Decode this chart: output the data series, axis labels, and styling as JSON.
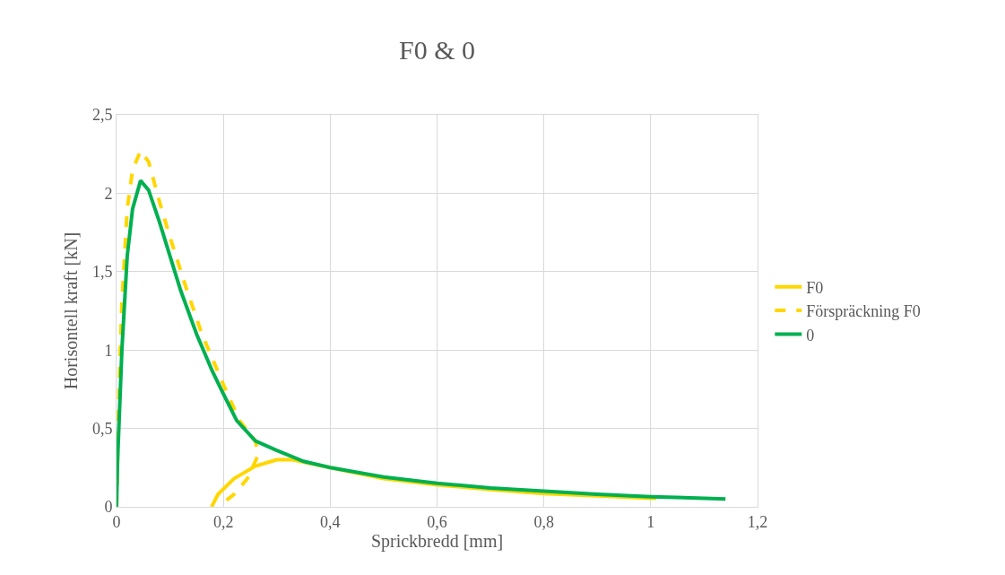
{
  "chart_data": {
    "type": "line",
    "title": "F0 & 0",
    "xlabel": "Sprickbredd [mm]",
    "ylabel": "Horisontell kraft [kN]",
    "xlim": [
      0,
      1.2
    ],
    "xticks": [
      0,
      {
        "value": 0.2,
        "label": "0,2"
      },
      {
        "value": 0.4,
        "label": "0,4"
      },
      {
        "value": 0.6,
        "label": "0,6"
      },
      {
        "value": 0.8,
        "label": "0,8"
      },
      1,
      {
        "value": 1.2,
        "label": "1,2"
      }
    ],
    "ylim": [
      0,
      2.5
    ],
    "yticks": [
      0,
      {
        "value": 0.5,
        "label": "0,5"
      },
      1,
      {
        "value": 1.5,
        "label": "1,5"
      },
      2,
      {
        "value": 2.5,
        "label": "2,5"
      }
    ],
    "grid": true,
    "legend": "right",
    "marker": "none",
    "series": [
      {
        "name": "F0",
        "color": "#ffd700",
        "line_style": "solid",
        "x": [
          0.178,
          0.19,
          0.22,
          0.26,
          0.3,
          0.33,
          0.4,
          0.5,
          0.6,
          0.7,
          0.8,
          0.9,
          1.0,
          1.01
        ],
        "values": [
          0,
          0.08,
          0.18,
          0.26,
          0.3,
          0.3,
          0.25,
          0.18,
          0.14,
          0.11,
          0.085,
          0.07,
          0.055,
          0.055
        ]
      },
      {
        "name": "Förspräckning F0",
        "color": "#ffd700",
        "line_style": "dashed",
        "x": [
          0,
          0.005,
          0.01,
          0.02,
          0.03,
          0.045,
          0.06,
          0.08,
          0.1,
          0.13,
          0.16,
          0.2,
          0.23,
          0.26,
          0.265,
          0.245,
          0.22,
          0.19
        ],
        "values": [
          0,
          0.8,
          1.3,
          1.9,
          2.15,
          2.27,
          2.2,
          1.95,
          1.72,
          1.4,
          1.1,
          0.78,
          0.55,
          0.42,
          0.33,
          0.18,
          0.08,
          0
        ]
      },
      {
        "name": "0",
        "color": "#00b050",
        "line_style": "solid",
        "x": [
          0,
          0.002,
          0.01,
          0.02,
          0.03,
          0.045,
          0.06,
          0.08,
          0.1,
          0.12,
          0.15,
          0.18,
          0.2,
          0.225,
          0.26,
          0.3,
          0.35,
          0.4,
          0.5,
          0.6,
          0.7,
          0.8,
          0.9,
          1.0,
          1.14
        ],
        "values": [
          0,
          0.3,
          1.0,
          1.6,
          1.9,
          2.08,
          2.02,
          1.82,
          1.6,
          1.38,
          1.1,
          0.86,
          0.72,
          0.55,
          0.42,
          0.36,
          0.29,
          0.25,
          0.19,
          0.15,
          0.12,
          0.1,
          0.08,
          0.065,
          0.05
        ]
      }
    ]
  }
}
